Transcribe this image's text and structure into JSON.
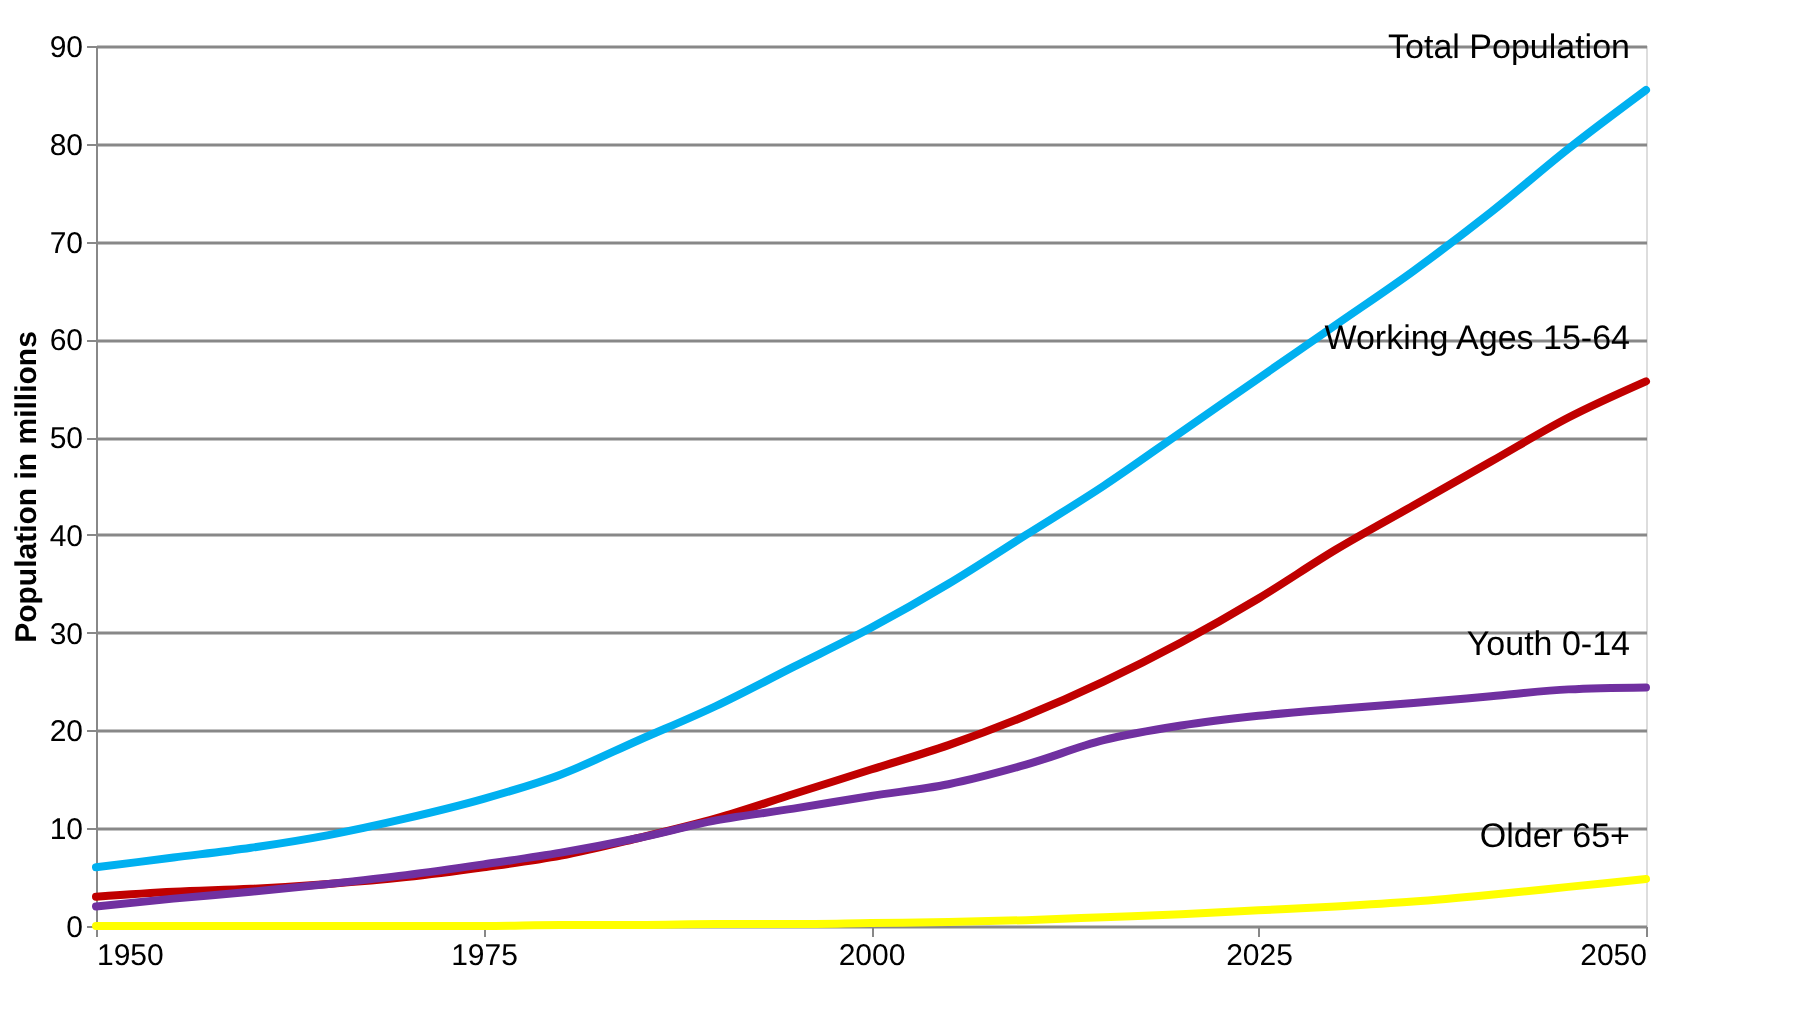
{
  "chart_data": {
    "type": "line",
    "ylabel": "Population in millions",
    "x": [
      1950,
      1955,
      1960,
      1965,
      1970,
      1975,
      1980,
      1985,
      1990,
      1995,
      2000,
      2005,
      2010,
      2015,
      2020,
      2025,
      2030,
      2035,
      2040,
      2045,
      2050
    ],
    "series": [
      {
        "name": "Total Population",
        "color": "#00b0f0",
        "values": [
          6,
          7,
          8,
          9.3,
          11,
          13,
          15.5,
          19,
          22.5,
          26.5,
          30.5,
          35,
          40,
          45,
          50.5,
          56,
          61.5,
          67,
          73,
          79.5,
          85.5
        ]
      },
      {
        "name": "Working Ages 15-64",
        "color": "#c00000",
        "values": [
          3,
          3.5,
          3.8,
          4.3,
          5,
          6,
          7.2,
          9,
          11,
          13.5,
          16,
          18.5,
          21.5,
          25,
          29,
          33.5,
          38.5,
          43,
          47.5,
          52,
          55.7
        ]
      },
      {
        "name": "Youth 0-14",
        "color": "#7030a0",
        "values": [
          2,
          2.8,
          3.5,
          4.3,
          5.2,
          6.3,
          7.5,
          9,
          10.8,
          12,
          13.3,
          14.5,
          16.5,
          19,
          20.5,
          21.5,
          22.2,
          22.8,
          23.5,
          24.2,
          24.4
        ]
      },
      {
        "name": "Older 65+",
        "color": "#ffff00",
        "values": [
          0,
          0,
          0,
          0,
          0,
          0,
          0.1,
          0.1,
          0.2,
          0.2,
          0.3,
          0.4,
          0.6,
          0.9,
          1.2,
          1.6,
          2,
          2.5,
          3.2,
          4,
          4.8
        ]
      }
    ],
    "xlim": [
      1950,
      2050
    ],
    "xticks": [
      1950,
      1975,
      2000,
      2025,
      2050
    ],
    "ylim": [
      0,
      90
    ],
    "yticks": [
      0,
      10,
      20,
      30,
      40,
      50,
      60,
      70,
      80,
      90
    ],
    "grid": "y",
    "legend": false,
    "marker": "none",
    "line_style": "solid"
  }
}
